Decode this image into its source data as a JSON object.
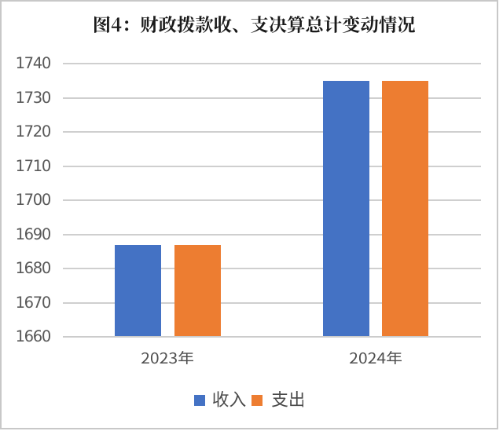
{
  "window": {
    "background": "#ffffff",
    "border_color": "#c8c8c8"
  },
  "chart_data": {
    "type": "bar",
    "title": "图4：财政拨款收、支决算总计变动情况",
    "categories": [
      "2023年",
      "2024年"
    ],
    "series": [
      {
        "name": "收入",
        "color": "#4472C4",
        "values": [
          1687,
          1735
        ]
      },
      {
        "name": "支出",
        "color": "#ED7D31",
        "values": [
          1687,
          1735
        ]
      }
    ],
    "ylabel": "",
    "xlabel": "",
    "ylim": [
      1660,
      1740
    ],
    "ytick_step": 10,
    "yticks": [
      1660,
      1670,
      1680,
      1690,
      1700,
      1710,
      1720,
      1730,
      1740
    ],
    "grid": true,
    "gridline_color": "#d9d9d9",
    "axis_line_color": "#d6d6d6",
    "tick_label_color": "#595959",
    "legend_position": "bottom"
  }
}
